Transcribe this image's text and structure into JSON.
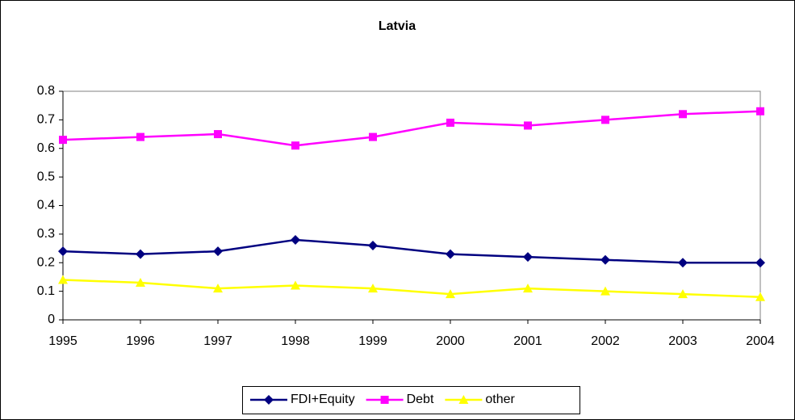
{
  "chart_data": {
    "type": "line",
    "title": "Latvia",
    "x": [
      1995,
      1996,
      1997,
      1998,
      1999,
      2000,
      2001,
      2002,
      2003,
      2004
    ],
    "xlim": [
      1995,
      2004
    ],
    "xticks": [
      1995,
      1996,
      1997,
      1998,
      1999,
      2000,
      2001,
      2002,
      2003,
      2004
    ],
    "ylim": [
      0,
      0.8
    ],
    "yticks": [
      0,
      0.1,
      0.2,
      0.3,
      0.4,
      0.5,
      0.6,
      0.7,
      0.8
    ],
    "grid": false,
    "legend": "bottom",
    "series": [
      {
        "name": "FDI+Equity",
        "color": "#000080",
        "marker": "diamond",
        "values": [
          0.24,
          0.23,
          0.24,
          0.28,
          0.26,
          0.23,
          0.22,
          0.21,
          0.2,
          0.2
        ]
      },
      {
        "name": "Debt",
        "color": "#ff00ff",
        "marker": "square",
        "values": [
          0.63,
          0.64,
          0.65,
          0.61,
          0.64,
          0.69,
          0.68,
          0.7,
          0.72,
          0.73
        ]
      },
      {
        "name": "other",
        "color": "#ffff00",
        "marker": "triangle",
        "values": [
          0.14,
          0.13,
          0.11,
          0.12,
          0.11,
          0.09,
          0.11,
          0.1,
          0.09,
          0.08
        ]
      }
    ]
  }
}
